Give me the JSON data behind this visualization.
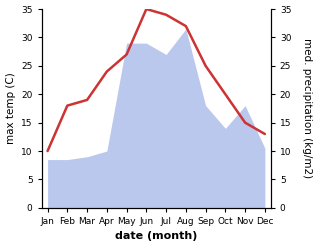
{
  "months": [
    "Jan",
    "Feb",
    "Mar",
    "Apr",
    "May",
    "Jun",
    "Jul",
    "Aug",
    "Sep",
    "Oct",
    "Nov",
    "Dec"
  ],
  "temp": [
    10,
    18,
    19,
    24,
    27,
    35,
    34,
    32,
    25,
    20,
    15,
    13
  ],
  "precip": [
    8.5,
    8.5,
    9,
    10,
    29,
    29,
    27,
    31.5,
    18,
    14,
    18,
    10.5
  ],
  "temp_color": "#cc3333",
  "precip_fill_color": "#bbc8ee",
  "ylim": [
    0,
    35
  ],
  "yticks": [
    0,
    5,
    10,
    15,
    20,
    25,
    30,
    35
  ],
  "xlabel": "date (month)",
  "ylabel_left": "max temp (C)",
  "ylabel_right": "med. precipitation (kg/m2)",
  "background_color": "#ffffff",
  "temp_linewidth": 1.8,
  "label_fontsize": 7.5,
  "tick_fontsize": 6.5
}
